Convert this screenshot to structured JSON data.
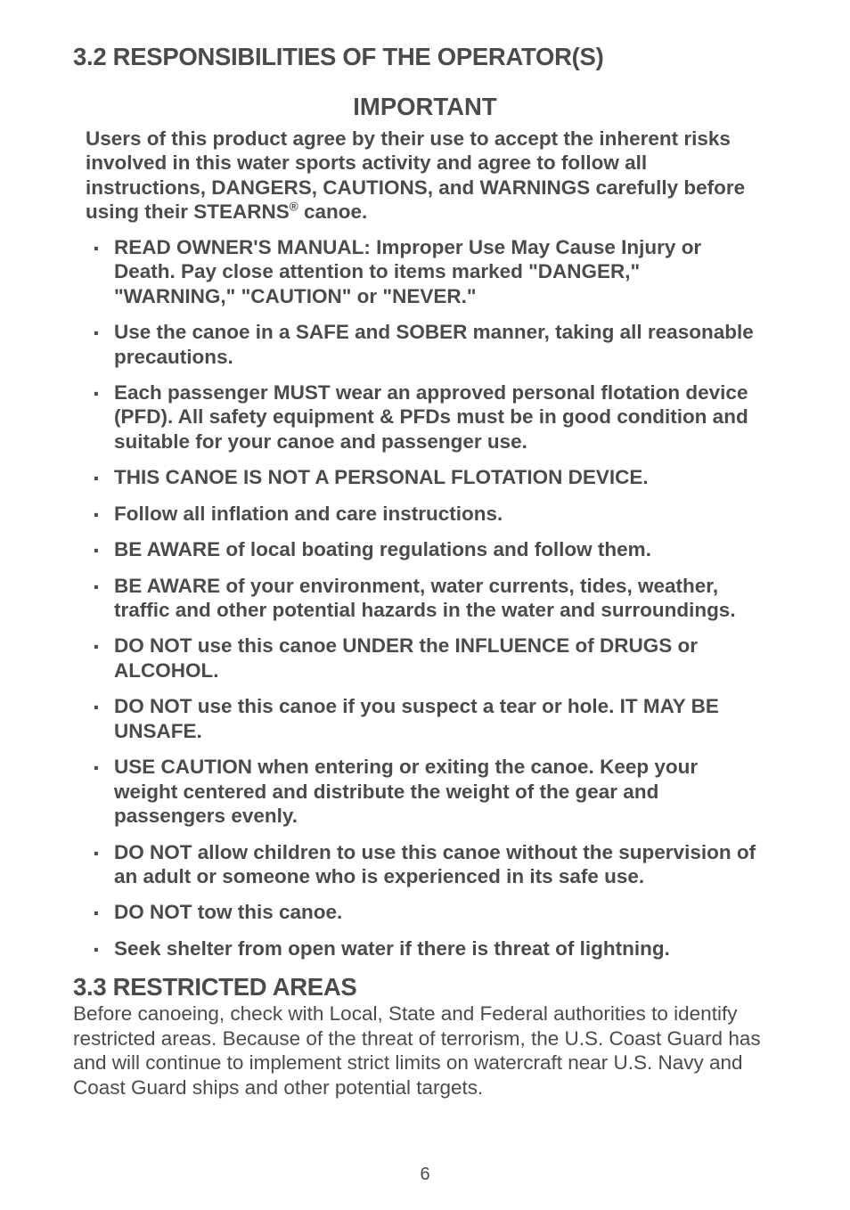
{
  "colors": {
    "text": "#4b4b4b",
    "background": "#ffffff"
  },
  "typography": {
    "family": "Arial, Helvetica, sans-serif",
    "heading_size_pt": 21,
    "body_size_pt": 17,
    "body_bold": true
  },
  "section_32": {
    "heading": "3.2 RESPONSIBILITIES OF THE OPERATOR(S)",
    "important_label": "IMPORTANT",
    "intro_html": "Users of this product agree by their use to accept the inherent risks involved in this water sports activity and agree to follow all instructions, DANGERS, CAUTIONS, and WARNINGS carefully before using their STEARNS<sup>®</sup> canoe.",
    "bullets": [
      "READ OWNER'S MANUAL: Improper Use May Cause Injury or Death. Pay close attention to items marked \"DANGER,\" \"WARNING,\" \"CAUTION\" or \"NEVER.\"",
      "Use the canoe in a SAFE and SOBER manner, taking all reasonable precautions.",
      "Each passenger MUST wear an approved personal flotation device (PFD). All safety equipment & PFDs must be in good condition and suitable for your canoe and passenger use.",
      "THIS CANOE IS NOT A PERSONAL FLOTATION DEVICE.",
      "Follow all inflation and care instructions.",
      "BE AWARE of local boating regulations and follow them.",
      "BE AWARE of your environment, water currents, tides, weather, traffic and other potential hazards in the water and surroundings.",
      "DO NOT use this canoe UNDER the INFLUENCE of DRUGS or ALCOHOL.",
      "DO NOT use this canoe if you suspect a tear or hole. IT MAY BE UNSAFE.",
      "USE CAUTION when entering or exiting the canoe. Keep your weight centered and distribute the weight of the gear and passengers evenly.",
      "DO NOT allow children to use this canoe without the supervision of an adult or someone who is experienced in its safe use.",
      "DO NOT tow this canoe.",
      "Seek shelter from open water if there is threat of lightning."
    ]
  },
  "section_33": {
    "heading": "3.3 RESTRICTED AREAS",
    "body": "Before canoeing, check with Local, State and Federal authorities to identify restricted areas. Because of the threat of terrorism, the U.S. Coast Guard has and will continue to implement strict limits on watercraft near U.S. Navy and Coast Guard ships and other potential targets."
  },
  "page_number": "6"
}
